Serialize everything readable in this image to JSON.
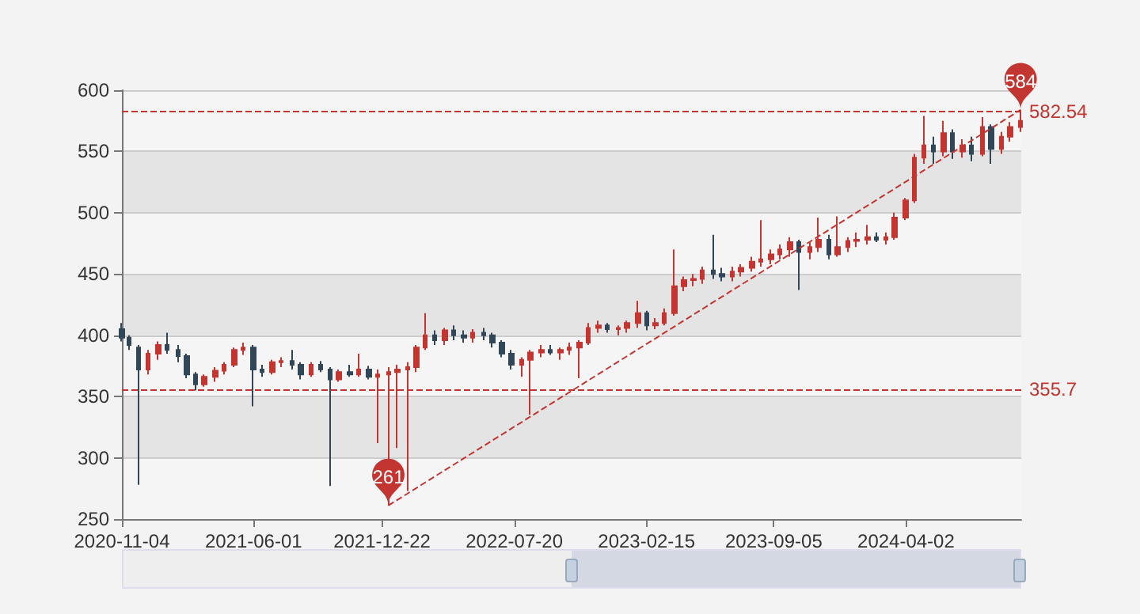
{
  "chart_data": {
    "type": "candlestick",
    "x": [
      "2020-11-04",
      "2020-11-15",
      "2020-12-01",
      "2020-12-15",
      "2021-01-01",
      "2021-01-15",
      "2021-02-01",
      "2021-02-15",
      "2021-03-01",
      "2021-03-15",
      "2021-04-01",
      "2021-04-15",
      "2021-05-01",
      "2021-05-15",
      "2021-06-01",
      "2021-06-15",
      "2021-07-01",
      "2021-07-15",
      "2021-08-01",
      "2021-08-15",
      "2021-09-01",
      "2021-09-15",
      "2021-10-01",
      "2021-10-15",
      "2021-11-01",
      "2021-11-15",
      "2021-12-01",
      "2021-12-15",
      "2022-01-01",
      "2022-01-15",
      "2022-02-01",
      "2022-02-15",
      "2022-03-01",
      "2022-03-15",
      "2022-04-01",
      "2022-04-15",
      "2022-05-01",
      "2022-05-15",
      "2022-06-01",
      "2022-06-15",
      "2022-07-01",
      "2022-07-15",
      "2022-08-01",
      "2022-08-15",
      "2022-09-01",
      "2022-09-15",
      "2022-10-01",
      "2022-10-15",
      "2022-11-01",
      "2022-11-15",
      "2022-12-01",
      "2022-12-15",
      "2023-01-01",
      "2023-01-15",
      "2023-02-01",
      "2023-02-15",
      "2023-03-01",
      "2023-03-15",
      "2023-04-01",
      "2023-04-15",
      "2023-05-01",
      "2023-05-15",
      "2023-06-01",
      "2023-06-15",
      "2023-07-01",
      "2023-07-15",
      "2023-08-01",
      "2023-08-15",
      "2023-09-01",
      "2023-09-15",
      "2023-10-01",
      "2023-10-15",
      "2023-11-01",
      "2023-11-15",
      "2023-12-01",
      "2023-12-15",
      "2024-01-01",
      "2024-01-15",
      "2024-02-01",
      "2024-02-15",
      "2024-03-01",
      "2024-03-15",
      "2024-04-01",
      "2024-04-15",
      "2024-05-01",
      "2024-05-15",
      "2024-06-01",
      "2024-06-15",
      "2024-07-01",
      "2024-07-15",
      "2024-08-01",
      "2024-08-15",
      "2024-09-01",
      "2024-09-15",
      "2024-10-01"
    ],
    "ohlc": [
      [
        405,
        410,
        395,
        398
      ],
      [
        398,
        400,
        388,
        392
      ],
      [
        390,
        392,
        278,
        372
      ],
      [
        372,
        388,
        368,
        385
      ],
      [
        385,
        395,
        380,
        392
      ],
      [
        392,
        402,
        385,
        388
      ],
      [
        388,
        392,
        378,
        383
      ],
      [
        383,
        385,
        365,
        368
      ],
      [
        368,
        370,
        355,
        360
      ],
      [
        360,
        368,
        358,
        366
      ],
      [
        366,
        374,
        362,
        371
      ],
      [
        371,
        378,
        368,
        376
      ],
      [
        376,
        390,
        374,
        388
      ],
      [
        388,
        394,
        384,
        390
      ],
      [
        390,
        392,
        342,
        372
      ],
      [
        372,
        376,
        366,
        370
      ],
      [
        370,
        380,
        368,
        378
      ],
      [
        378,
        382,
        374,
        379
      ],
      [
        379,
        388,
        372,
        376
      ],
      [
        376,
        378,
        364,
        368
      ],
      [
        368,
        378,
        366,
        376
      ],
      [
        376,
        379,
        370,
        372
      ],
      [
        372,
        374,
        277,
        364
      ],
      [
        364,
        372,
        362,
        370
      ],
      [
        370,
        376,
        366,
        368
      ],
      [
        368,
        385,
        366,
        372
      ],
      [
        372,
        375,
        364,
        366
      ],
      [
        366,
        372,
        312,
        368
      ],
      [
        368,
        374,
        261,
        370
      ],
      [
        370,
        376,
        308,
        372
      ],
      [
        372,
        378,
        273,
        374
      ],
      [
        374,
        392,
        370,
        390
      ],
      [
        390,
        418,
        388,
        400
      ],
      [
        400,
        404,
        392,
        396
      ],
      [
        396,
        406,
        392,
        404
      ],
      [
        404,
        408,
        396,
        400
      ],
      [
        400,
        404,
        394,
        398
      ],
      [
        398,
        405,
        394,
        402
      ],
      [
        402,
        406,
        396,
        400
      ],
      [
        400,
        402,
        390,
        394
      ],
      [
        394,
        396,
        382,
        385
      ],
      [
        385,
        388,
        372,
        376
      ],
      [
        376,
        382,
        366,
        380
      ],
      [
        380,
        388,
        335,
        386
      ],
      [
        386,
        392,
        382,
        388
      ],
      [
        388,
        392,
        384,
        386
      ],
      [
        386,
        390,
        380,
        388
      ],
      [
        388,
        394,
        384,
        390
      ],
      [
        390,
        396,
        365,
        394
      ],
      [
        394,
        410,
        392,
        406
      ],
      [
        406,
        412,
        402,
        408
      ],
      [
        408,
        410,
        402,
        405
      ],
      [
        405,
        408,
        400,
        406
      ],
      [
        406,
        412,
        402,
        410
      ],
      [
        410,
        428,
        406,
        418
      ],
      [
        418,
        420,
        404,
        408
      ],
      [
        408,
        414,
        405,
        410
      ],
      [
        410,
        422,
        408,
        418
      ],
      [
        418,
        470,
        416,
        440
      ],
      [
        440,
        448,
        436,
        445
      ],
      [
        445,
        450,
        440,
        446
      ],
      [
        446,
        456,
        442,
        453
      ],
      [
        453,
        482,
        446,
        450
      ],
      [
        450,
        455,
        444,
        448
      ],
      [
        448,
        456,
        444,
        452
      ],
      [
        452,
        458,
        448,
        455
      ],
      [
        455,
        464,
        452,
        460
      ],
      [
        460,
        494,
        456,
        462
      ],
      [
        462,
        470,
        458,
        466
      ],
      [
        466,
        474,
        462,
        470
      ],
      [
        470,
        480,
        464,
        476
      ],
      [
        476,
        478,
        437,
        468
      ],
      [
        468,
        476,
        462,
        472
      ],
      [
        472,
        496,
        468,
        478
      ],
      [
        478,
        482,
        462,
        466
      ],
      [
        466,
        497,
        464,
        472
      ],
      [
        472,
        480,
        468,
        477
      ],
      [
        477,
        484,
        472,
        478
      ],
      [
        478,
        490,
        474,
        480
      ],
      [
        480,
        484,
        476,
        478
      ],
      [
        478,
        484,
        474,
        480
      ],
      [
        480,
        500,
        478,
        496
      ],
      [
        496,
        512,
        494,
        510
      ],
      [
        510,
        548,
        508,
        545
      ],
      [
        545,
        579,
        540,
        555
      ],
      [
        555,
        562,
        540,
        550
      ],
      [
        550,
        575,
        546,
        565
      ],
      [
        565,
        568,
        544,
        550
      ],
      [
        550,
        560,
        545,
        555
      ],
      [
        555,
        562,
        542,
        548
      ],
      [
        548,
        578,
        546,
        570
      ],
      [
        570,
        572,
        540,
        552
      ],
      [
        552,
        566,
        548,
        562
      ],
      [
        562,
        574,
        558,
        570
      ],
      [
        570,
        584,
        566,
        575
      ]
    ],
    "colors": [
      "#314656",
      "#314656",
      "#314656",
      "#c23531",
      "#c23531",
      "#314656",
      "#314656",
      "#314656",
      "#314656",
      "#c23531",
      "#c23531",
      "#c23531",
      "#c23531",
      "#c23531",
      "#314656",
      "#314656",
      "#c23531",
      "#c23531",
      "#314656",
      "#314656",
      "#c23531",
      "#314656",
      "#314656",
      "#c23531",
      "#314656",
      "#c23531",
      "#314656",
      "#c23531",
      "#c23531",
      "#c23531",
      "#c23531",
      "#c23531",
      "#c23531",
      "#314656",
      "#c23531",
      "#314656",
      "#314656",
      "#c23531",
      "#314656",
      "#314656",
      "#314656",
      "#314656",
      "#c23531",
      "#c23531",
      "#c23531",
      "#314656",
      "#c23531",
      "#c23531",
      "#c23531",
      "#c23531",
      "#c23531",
      "#314656",
      "#c23531",
      "#c23531",
      "#c23531",
      "#314656",
      "#c23531",
      "#c23531",
      "#c23531",
      "#c23531",
      "#c23531",
      "#c23531",
      "#314656",
      "#314656",
      "#c23531",
      "#c23531",
      "#c23531",
      "#c23531",
      "#c23531",
      "#c23531",
      "#c23531",
      "#314656",
      "#c23531",
      "#c23531",
      "#314656",
      "#c23531",
      "#c23531",
      "#c23531",
      "#c23531",
      "#314656",
      "#c23531",
      "#c23531",
      "#c23531",
      "#c23531",
      "#c23531",
      "#314656",
      "#c23531",
      "#314656",
      "#c23531",
      "#314656",
      "#c23531",
      "#314656",
      "#c23531",
      "#c23531",
      "#c23531"
    ],
    "series": [
      {
        "type": "line",
        "x": [
          "2022-01-01",
          "2024-10-01"
        ],
        "values": [
          261,
          584
        ],
        "color": "#c23531",
        "line_style": "dashed",
        "marker": "none"
      }
    ],
    "xlim": [
      "2020-11-04",
      "2024-10-02"
    ],
    "xticks": [
      "2020-11-04",
      "2021-06-01",
      "2021-12-22",
      "2022-07-20",
      "2023-02-15",
      "2023-09-05",
      "2024-04-02"
    ],
    "ylim": [
      250,
      600
    ],
    "yticks": [
      250,
      300,
      350,
      400,
      450,
      500,
      550,
      600
    ],
    "grid": "y",
    "ref_lines": [
      {
        "axis": "y",
        "value": 582.54,
        "label": "582.54",
        "color": "#c23531",
        "line_style": "dashed"
      },
      {
        "axis": "y",
        "value": 355.7,
        "label": "355.7",
        "color": "#c23531",
        "line_style": "dashed"
      }
    ],
    "annotations": [
      {
        "text": "584",
        "x": "2024-10-01",
        "y": 584
      },
      {
        "text": "261",
        "x": "2022-01-01",
        "y": 261
      }
    ]
  }
}
